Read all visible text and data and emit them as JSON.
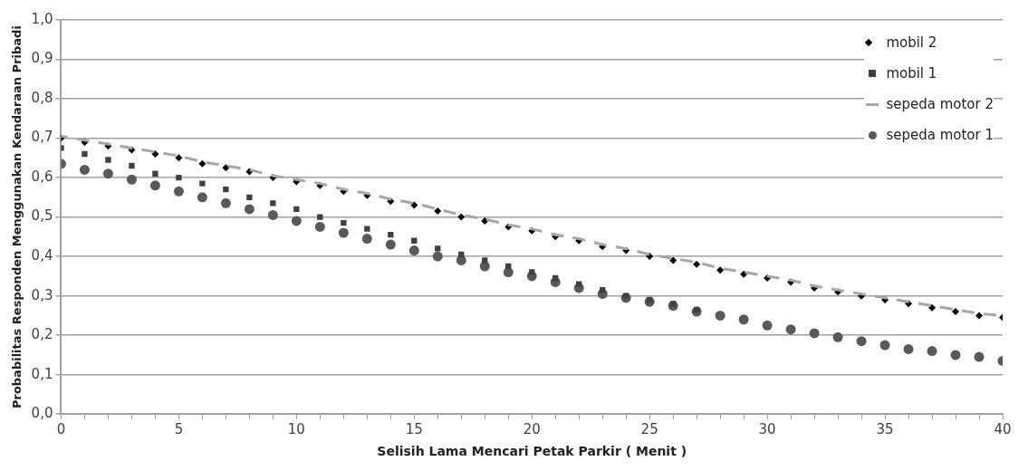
{
  "chart_data": {
    "type": "scatter",
    "xlabel": "Selisih Lama Mencari Petak Parkir ( Menit )",
    "ylabel": "Probabilitas Responden Menggunakan Kendaraan Pribadi",
    "x": [
      0,
      1,
      2,
      3,
      4,
      5,
      6,
      7,
      8,
      9,
      10,
      11,
      12,
      13,
      14,
      15,
      16,
      17,
      18,
      19,
      20,
      21,
      22,
      23,
      24,
      25,
      26,
      27,
      28,
      29,
      30,
      31,
      32,
      33,
      34,
      35,
      36,
      37,
      38,
      39,
      40
    ],
    "xlim": [
      0,
      40
    ],
    "xticks": [
      0,
      {
        "value": 1,
        "label": null
      },
      {
        "value": 2,
        "label": null
      },
      {
        "value": 3,
        "label": null
      },
      {
        "value": 4,
        "label": null
      },
      5,
      {
        "value": 6,
        "label": null
      },
      {
        "value": 7,
        "label": null
      },
      {
        "value": 8,
        "label": null
      },
      {
        "value": 9,
        "label": null
      },
      10,
      {
        "value": 11,
        "label": null
      },
      {
        "value": 12,
        "label": null
      },
      {
        "value": 13,
        "label": null
      },
      {
        "value": 14,
        "label": null
      },
      15,
      {
        "value": 16,
        "label": null
      },
      {
        "value": 17,
        "label": null
      },
      {
        "value": 18,
        "label": null
      },
      {
        "value": 19,
        "label": null
      },
      20,
      {
        "value": 21,
        "label": null
      },
      {
        "value": 22,
        "label": null
      },
      {
        "value": 23,
        "label": null
      },
      {
        "value": 24,
        "label": null
      },
      25,
      {
        "value": 26,
        "label": null
      },
      {
        "value": 27,
        "label": null
      },
      {
        "value": 28,
        "label": null
      },
      {
        "value": 29,
        "label": null
      },
      30,
      {
        "value": 31,
        "label": null
      },
      {
        "value": 32,
        "label": null
      },
      {
        "value": 33,
        "label": null
      },
      {
        "value": 34,
        "label": null
      },
      35,
      {
        "value": 36,
        "label": null
      },
      {
        "value": 37,
        "label": null
      },
      {
        "value": 38,
        "label": null
      },
      {
        "value": 39,
        "label": null
      },
      40
    ],
    "ylim": [
      0,
      1
    ],
    "yticks": [
      {
        "value": 0,
        "label": "0,0"
      },
      {
        "value": 0.1,
        "label": "0,1"
      },
      {
        "value": 0.2,
        "label": "0,2"
      },
      {
        "value": 0.3,
        "label": "0,3"
      },
      {
        "value": 0.4,
        "label": "0,4"
      },
      {
        "value": 0.5,
        "label": "0,5"
      },
      {
        "value": 0.6,
        "label": "0,6"
      },
      {
        "value": 0.7,
        "label": "0,7"
      },
      {
        "value": 0.8,
        "label": "0,8"
      },
      {
        "value": 0.9,
        "label": "0,9"
      },
      {
        "value": 1,
        "label": "1,0"
      }
    ],
    "grid": "y",
    "legend": "top right",
    "series": [
      {
        "name": "mobil 2",
        "color": "#000000",
        "marker": "diamond",
        "values": [
          0.7,
          0.69,
          0.68,
          0.67,
          0.66,
          0.65,
          0.635,
          0.625,
          0.615,
          0.6,
          0.59,
          0.58,
          0.565,
          0.555,
          0.54,
          0.53,
          0.515,
          0.5,
          0.49,
          0.475,
          0.465,
          0.45,
          0.44,
          0.425,
          0.415,
          0.4,
          0.39,
          0.38,
          0.365,
          0.355,
          0.345,
          0.335,
          0.32,
          0.31,
          0.3,
          0.29,
          0.28,
          0.27,
          0.26,
          0.25,
          0.245
        ]
      },
      {
        "name": "mobil 1",
        "color": "#404040",
        "marker": "square",
        "values": [
          0.675,
          0.66,
          0.645,
          0.63,
          0.61,
          0.6,
          0.585,
          0.57,
          0.55,
          0.535,
          0.52,
          0.5,
          0.485,
          0.47,
          0.455,
          0.44,
          0.42,
          0.405,
          0.39,
          0.375,
          0.36,
          0.345,
          0.33,
          0.315,
          0.3,
          0.29,
          0.28,
          0.265,
          null,
          null,
          null,
          null,
          null,
          null,
          null,
          null,
          null,
          null,
          null,
          null,
          null
        ]
      },
      {
        "name": "sepeda motor 2",
        "color": "#a6a6a6",
        "type": "line",
        "marker": "none",
        "line_style": "dashed",
        "values": [
          0.705,
          0.695,
          0.685,
          0.675,
          0.665,
          0.655,
          0.64,
          0.63,
          0.62,
          0.605,
          0.595,
          0.585,
          0.57,
          0.56,
          0.545,
          0.535,
          0.52,
          0.505,
          0.495,
          0.48,
          0.47,
          0.455,
          0.445,
          0.43,
          0.42,
          0.405,
          0.395,
          0.385,
          0.37,
          0.36,
          0.35,
          0.34,
          0.325,
          0.315,
          0.305,
          0.295,
          0.285,
          0.275,
          0.265,
          0.255,
          0.25
        ]
      },
      {
        "name": "sepeda motor 1",
        "color": "#595959",
        "marker": "circle",
        "values": [
          0.635,
          0.62,
          0.61,
          0.595,
          0.58,
          0.565,
          0.55,
          0.535,
          0.52,
          0.505,
          0.49,
          0.475,
          0.46,
          0.445,
          0.43,
          0.415,
          0.4,
          0.39,
          0.375,
          0.36,
          0.35,
          0.335,
          0.32,
          0.305,
          0.295,
          0.285,
          0.275,
          0.26,
          0.25,
          0.24,
          0.225,
          0.215,
          0.205,
          0.195,
          0.185,
          0.175,
          0.165,
          0.16,
          0.15,
          0.145,
          0.135
        ]
      }
    ]
  }
}
